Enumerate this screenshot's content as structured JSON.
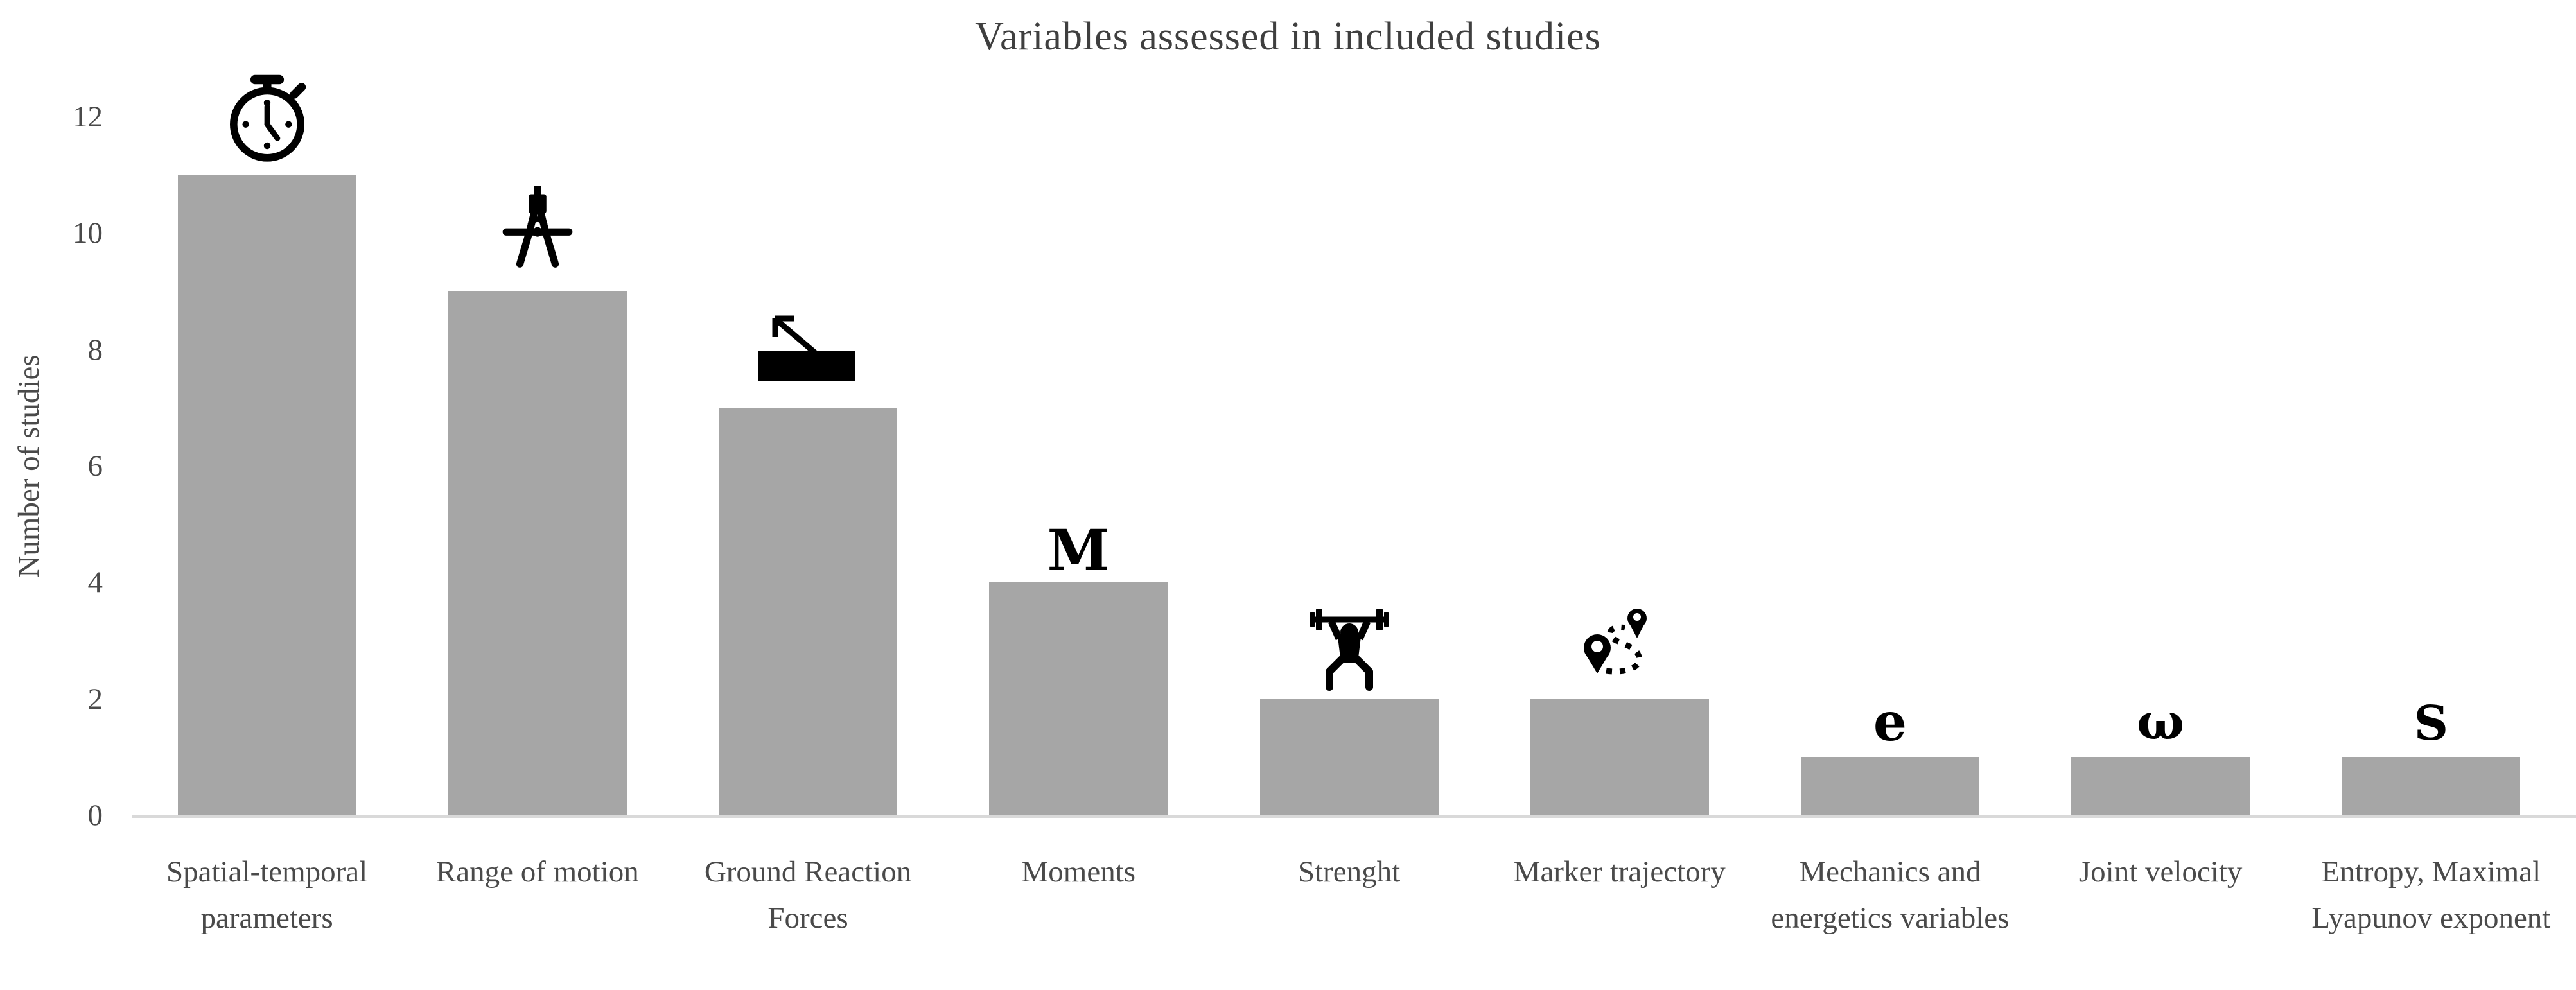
{
  "chart_data": {
    "type": "bar",
    "title": "Variables assessed in included studies",
    "xlabel": "",
    "ylabel": "Number of studies",
    "ylim": [
      0,
      12
    ],
    "yticks": [
      0,
      2,
      4,
      6,
      8,
      10,
      12
    ],
    "grid": "off",
    "legend": "none",
    "bar_color": "#a6a6a6",
    "axis_line_color": "#d9d9d9",
    "categories": [
      "Spatial-temporal parameters",
      "Range of motion",
      "Ground Reaction Forces",
      "Moments",
      "Strenght",
      "Marker trajectory",
      "Mechanics and energetics variables",
      "Joint velocity",
      "Entropy, Maximal Lyapunov exponent"
    ],
    "values": [
      11,
      9,
      7,
      4,
      2,
      2,
      1,
      1,
      1
    ],
    "icons": [
      {
        "name": "stopwatch-icon",
        "kind": "svg"
      },
      {
        "name": "drafting-compass-icon",
        "kind": "svg"
      },
      {
        "name": "force-plate-arrow-icon",
        "kind": "svg"
      },
      {
        "name": "moment-symbol",
        "kind": "text",
        "text": "M"
      },
      {
        "name": "weightlifter-icon",
        "kind": "svg"
      },
      {
        "name": "marker-route-icon",
        "kind": "svg"
      },
      {
        "name": "energetics-symbol",
        "kind": "text",
        "text": "e"
      },
      {
        "name": "angular-velocity-symbol",
        "kind": "text",
        "text": "ω"
      },
      {
        "name": "entropy-symbol",
        "kind": "text",
        "text": "S"
      }
    ]
  }
}
